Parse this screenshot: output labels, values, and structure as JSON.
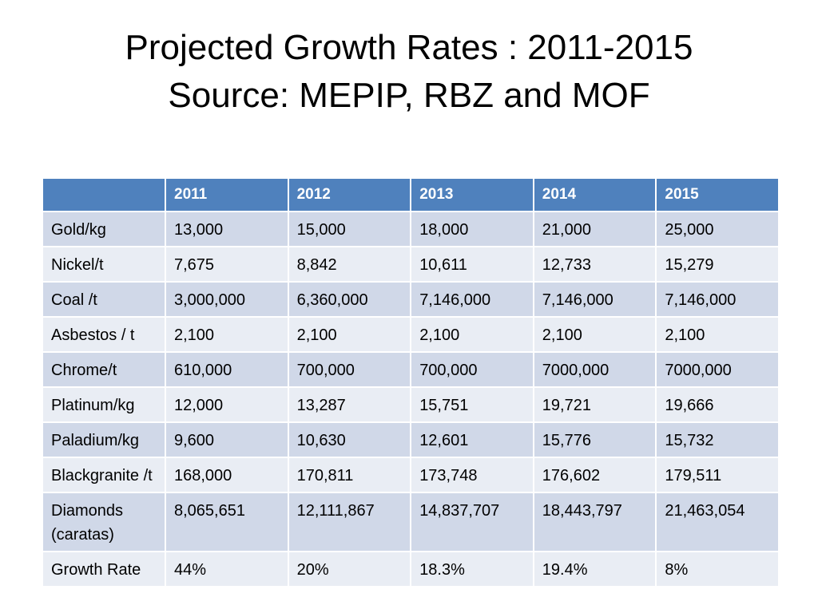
{
  "title": {
    "line1": "Projected Growth Rates : 2011-2015",
    "line2": "Source: MEPIP, RBZ and MOF"
  },
  "colors": {
    "header_bg": "#4f81bd",
    "row_dark": "#d0d8e8",
    "row_light": "#e9edf4"
  },
  "table": {
    "headers": [
      "",
      "2011",
      "2012",
      "2013",
      "2014",
      "2015"
    ],
    "rows": [
      {
        "label": "Gold/kg",
        "values": [
          "13,000",
          "15,000",
          "18,000",
          "21,000",
          "25,000"
        ]
      },
      {
        "label": "Nickel/t",
        "values": [
          "7,675",
          "8,842",
          "10,611",
          "12,733",
          "15,279"
        ]
      },
      {
        "label": "Coal /t",
        "values": [
          "3,000,000",
          "6,360,000",
          "7,146,000",
          "7,146,000",
          "7,146,000"
        ]
      },
      {
        "label": "Asbestos / t",
        "values": [
          "2,100",
          "2,100",
          "2,100",
          "2,100",
          "2,100"
        ]
      },
      {
        "label": "Chrome/t",
        "values": [
          "610,000",
          "700,000",
          "700,000",
          "7000,000",
          "7000,000"
        ]
      },
      {
        "label": "Platinum/kg",
        "values": [
          "12,000",
          "13,287",
          "15,751",
          "19,721",
          "19,666"
        ]
      },
      {
        "label": "Paladium/kg",
        "values": [
          "9,600",
          "10,630",
          "12,601",
          "15,776",
          "15,732"
        ]
      },
      {
        "label": "Blackgranite /t",
        "values": [
          "168,000",
          "170,811",
          "173,748",
          "176,602",
          "179,511"
        ]
      },
      {
        "label": "Diamonds (caratas)",
        "values": [
          "8,065,651",
          "12,111,867",
          "14,837,707",
          "18,443,797",
          "21,463,054"
        ]
      },
      {
        "label": "Growth Rate",
        "values": [
          "44%",
          "20%",
          "18.3%",
          "19.4%",
          "8%"
        ]
      }
    ]
  }
}
